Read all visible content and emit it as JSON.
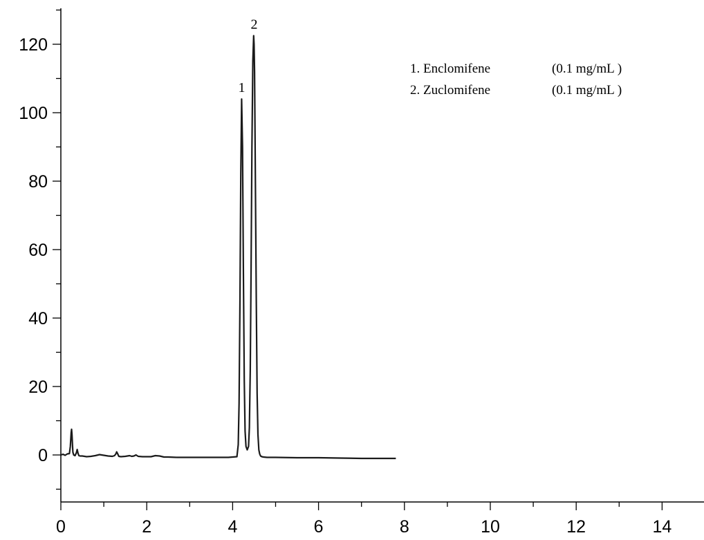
{
  "chart_data": {
    "type": "line",
    "title": "",
    "xlabel": "",
    "ylabel": "",
    "xlim": [
      0,
      15
    ],
    "ylim": [
      -13,
      130
    ],
    "x_major_ticks": [
      0,
      2,
      4,
      6,
      8,
      10,
      12,
      14
    ],
    "y_major_ticks": [
      0,
      20,
      40,
      60,
      80,
      100,
      120
    ],
    "grid": false,
    "legend_position": "top-right",
    "legend": [
      {
        "compound": "1. Enclomifene",
        "concentration": "(0.1 mg/mL )"
      },
      {
        "compound": "2. Zuclomifene",
        "concentration": "(0.1 mg/mL )"
      }
    ],
    "peaks": [
      {
        "label": "1",
        "x": 4.21,
        "y": 104
      },
      {
        "label": "2",
        "x": 4.5,
        "y": 122.5
      }
    ],
    "series": [
      {
        "x": [
          0.0,
          0.05,
          0.1,
          0.15,
          0.2,
          0.22,
          0.24,
          0.25,
          0.26,
          0.27,
          0.28,
          0.3,
          0.33,
          0.36,
          0.38,
          0.4,
          0.42,
          0.45,
          0.5,
          0.6,
          0.7,
          0.8,
          0.9,
          1.0,
          1.1,
          1.2,
          1.25,
          1.28,
          1.3,
          1.32,
          1.35,
          1.4,
          1.5,
          1.6,
          1.65,
          1.7,
          1.75,
          1.8,
          1.9,
          2.0,
          2.1,
          2.2,
          2.3,
          2.4,
          2.5,
          2.7,
          3.0,
          3.3,
          3.6,
          3.9,
          4.1,
          4.13,
          4.15,
          4.17,
          4.19,
          4.21,
          4.23,
          4.25,
          4.27,
          4.29,
          4.31,
          4.34,
          4.37,
          4.39,
          4.41,
          4.43,
          4.45,
          4.47,
          4.49,
          4.5,
          4.51,
          4.53,
          4.55,
          4.57,
          4.59,
          4.61,
          4.63,
          4.65,
          4.68,
          4.72,
          4.8,
          5.0,
          5.5,
          6.0,
          6.5,
          7.0,
          7.5,
          7.8
        ],
        "y": [
          0,
          0.2,
          -0.1,
          0.3,
          0.4,
          2.5,
          6.5,
          7.5,
          6.0,
          3.0,
          0.8,
          0.0,
          -0.2,
          0.6,
          1.6,
          0.5,
          -0.2,
          -0.3,
          -0.3,
          -0.5,
          -0.4,
          -0.2,
          0.1,
          -0.1,
          -0.3,
          -0.4,
          -0.2,
          0.3,
          0.9,
          0.4,
          -0.4,
          -0.5,
          -0.4,
          -0.2,
          -0.4,
          -0.3,
          0.0,
          -0.4,
          -0.5,
          -0.5,
          -0.5,
          -0.2,
          -0.3,
          -0.6,
          -0.6,
          -0.7,
          -0.7,
          -0.7,
          -0.7,
          -0.7,
          -0.5,
          3,
          15,
          45,
          82,
          104,
          90,
          55,
          22,
          7,
          2.5,
          1.5,
          2.5,
          8,
          25,
          55,
          90,
          115,
          122.5,
          120,
          112,
          80,
          45,
          18,
          6,
          1.5,
          0.3,
          -0.3,
          -0.5,
          -0.6,
          -0.7,
          -0.7,
          -0.8,
          -0.8,
          -0.9,
          -1.0,
          -1.0,
          -1.0
        ]
      }
    ]
  }
}
